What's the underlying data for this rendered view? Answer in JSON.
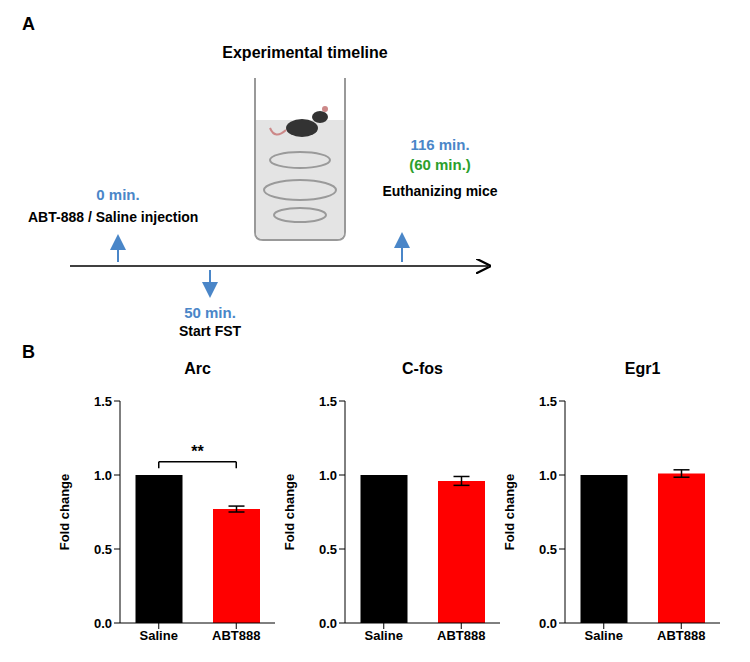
{
  "panels": [
    "A",
    "B"
  ],
  "timeline": {
    "title": "Experimental timeline",
    "events": [
      {
        "time": "0 min.",
        "label": "ABT-888 / Saline injection"
      },
      {
        "time": "50 min.",
        "label": "Start FST"
      },
      {
        "time": "116 min.",
        "time_alt": "(60 min.)",
        "label": "Euthanizing mice"
      }
    ]
  },
  "chart_data": [
    {
      "type": "bar",
      "title": "Arc",
      "categories": [
        "Saline",
        "ABT888"
      ],
      "values": [
        1.0,
        0.77
      ],
      "errors": [
        0,
        0.02
      ],
      "colors": [
        "#000000",
        "#ff0000"
      ],
      "y_label": "Fold change",
      "ylim": [
        0,
        1.5
      ],
      "yticks": [
        {
          "value": 0,
          "label": "0.0"
        },
        {
          "value": 0.5,
          "label": "0.5"
        },
        {
          "value": 1,
          "label": "1.0"
        },
        {
          "value": 1.5,
          "label": "1.5"
        }
      ],
      "annotation": "**"
    },
    {
      "type": "bar",
      "title": "C-fos",
      "categories": [
        "Saline",
        "ABT888"
      ],
      "values": [
        1.0,
        0.96
      ],
      "errors": [
        0,
        0.03
      ],
      "colors": [
        "#000000",
        "#ff0000"
      ],
      "y_label": "Fold change",
      "ylim": [
        0,
        1.5
      ],
      "yticks": [
        {
          "value": 0,
          "label": "0.0"
        },
        {
          "value": 0.5,
          "label": "0.5"
        },
        {
          "value": 1,
          "label": "1.0"
        },
        {
          "value": 1.5,
          "label": "1.5"
        }
      ]
    },
    {
      "type": "bar",
      "title": "Egr1",
      "categories": [
        "Saline",
        "ABT888"
      ],
      "values": [
        1.0,
        1.01
      ],
      "errors": [
        0,
        0.025
      ],
      "colors": [
        "#000000",
        "#ff0000"
      ],
      "y_label": "Fold change",
      "ylim": [
        0,
        1.5
      ],
      "yticks": [
        {
          "value": 0,
          "label": "0.0"
        },
        {
          "value": 0.5,
          "label": "0.5"
        },
        {
          "value": 1,
          "label": "1.0"
        },
        {
          "value": 1.5,
          "label": "1.5"
        }
      ]
    }
  ]
}
